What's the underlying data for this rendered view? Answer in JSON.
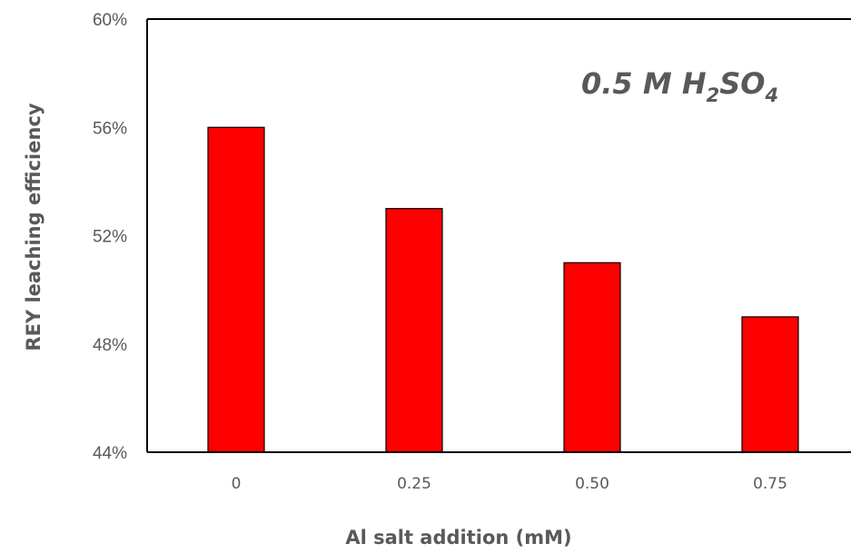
{
  "chart_data": {
    "type": "bar",
    "title": "",
    "xlabel": "Al salt addition (mM)",
    "ylabel": "REY leaching efficiency",
    "categories": [
      "0",
      "0.25",
      "0.50",
      "0.75"
    ],
    "values": [
      56,
      53,
      51,
      49
    ],
    "ylim": [
      44,
      60
    ],
    "y_ticks": [
      44,
      48,
      52,
      56,
      60
    ],
    "y_tick_suffix": "%",
    "annotation": {
      "main": "0.5 M H",
      "sub1": "2",
      "mid": "SO",
      "sub2": "4"
    },
    "grid": false,
    "legend": "none",
    "colors": {
      "bar_fill": "#ff0000",
      "bar_stroke": "#000000",
      "axis": "#000000",
      "text": "#595959"
    }
  }
}
